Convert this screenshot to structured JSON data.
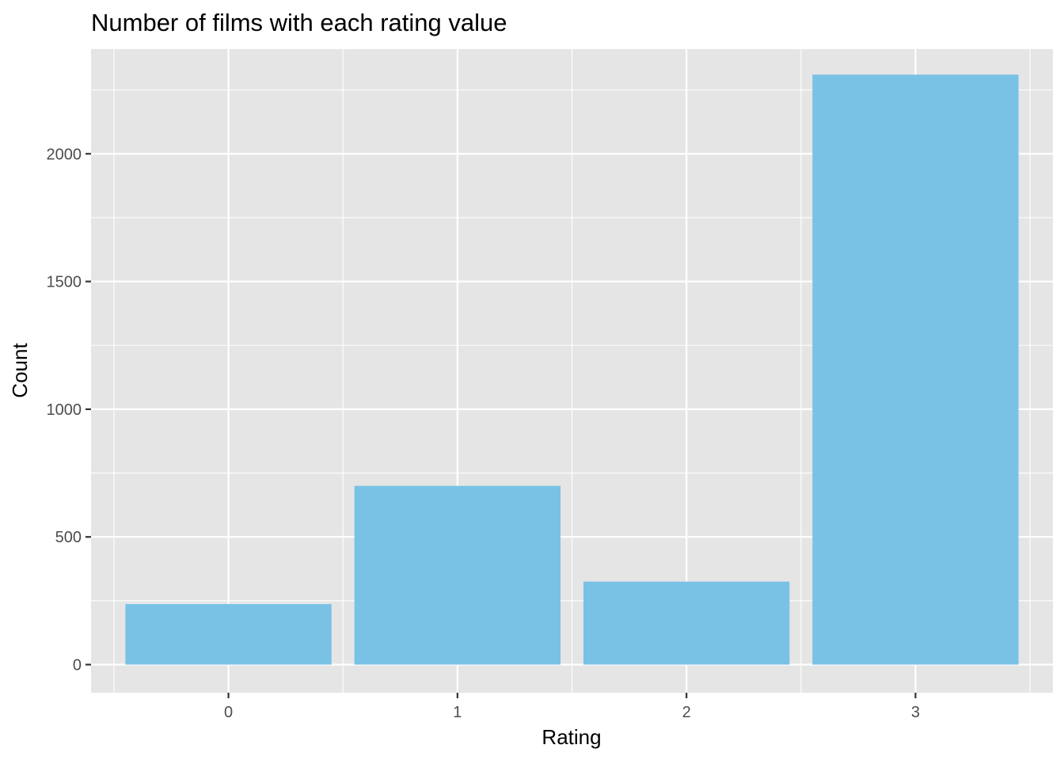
{
  "chart_data": {
    "type": "bar",
    "title": "Number of films with each rating value",
    "xlabel": "Rating",
    "ylabel": "Count",
    "categories": [
      "0",
      "1",
      "2",
      "3"
    ],
    "values": [
      237,
      700,
      325,
      2310
    ],
    "ylim": [
      -110,
      2410
    ],
    "yticks": [
      0,
      500,
      1000,
      1500,
      2000
    ],
    "grid": true,
    "legend": "none",
    "colors": {
      "bar": "#79c2e5",
      "panel": "#e5e5e5",
      "grid": "#ffffff"
    }
  }
}
